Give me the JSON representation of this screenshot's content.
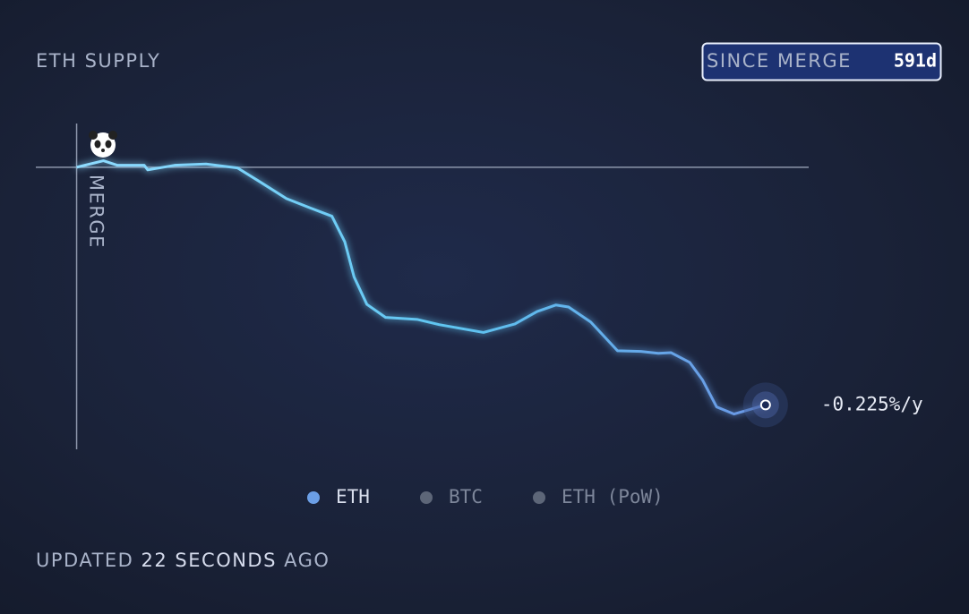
{
  "chart_data": {
    "type": "line",
    "title": "ETH SUPPLY",
    "range_button": {
      "label": "SINCE MERGE",
      "value_label": "591d"
    },
    "merge_label": "MERGE",
    "x": [
      0,
      23,
      35,
      58,
      61,
      84,
      111,
      138,
      157,
      180,
      200,
      219,
      230,
      238,
      249,
      265,
      292,
      311,
      349,
      376,
      395,
      411,
      422,
      441,
      464,
      484,
      499,
      510,
      526,
      537,
      549,
      564,
      591
    ],
    "series": [
      {
        "name": "ETH",
        "color": "#62c6f2",
        "values": [
          0,
          0.01,
          0.003,
          0.003,
          -0.004,
          0.003,
          0.005,
          -0.001,
          -0.022,
          -0.048,
          -0.062,
          -0.075,
          -0.114,
          -0.168,
          -0.21,
          -0.23,
          -0.233,
          -0.241,
          -0.253,
          -0.24,
          -0.221,
          -0.211,
          -0.214,
          -0.237,
          -0.281,
          -0.282,
          -0.285,
          -0.284,
          -0.299,
          -0.326,
          -0.367,
          -0.378,
          -0.364
        ]
      }
    ],
    "inactive_series": [
      {
        "name": "BTC",
        "color": "#5d6678"
      },
      {
        "name": "ETH (PoW)",
        "color": "#5d6678"
      }
    ],
    "legend_color": "#6c9fe6",
    "end_label": {
      "value": -0.225,
      "label": "-0.225%/y"
    },
    "xlim": [
      -35,
      628
    ],
    "ylim": [
      -0.432,
      0.067
    ],
    "footer": {
      "prefix": "UPDATED",
      "age": "22 SECONDS",
      "suffix": "AGO"
    }
  }
}
